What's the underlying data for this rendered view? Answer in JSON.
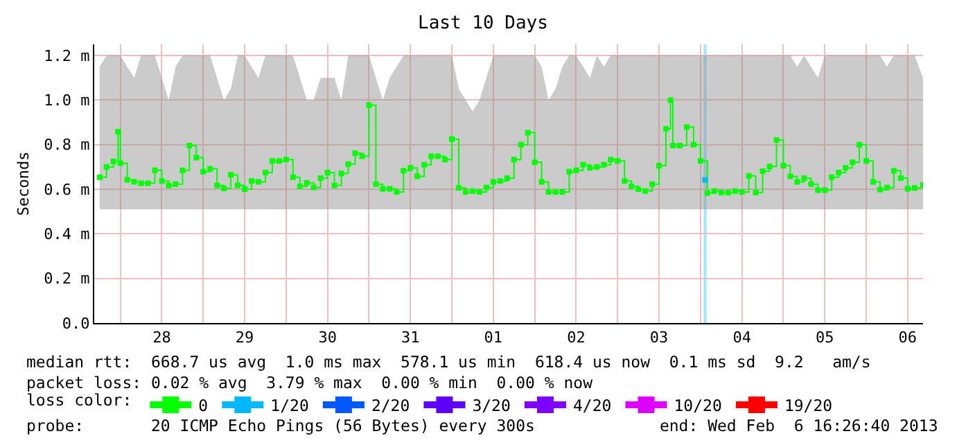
{
  "chart_data": {
    "type": "step",
    "title": "Last 10 Days",
    "ylabel": "Seconds",
    "legend_title": "loss color:",
    "x": [
      "2013-01-27T18:00",
      "2013-01-27T20:00",
      "2013-01-27T22:00",
      "2013-01-27T23:20",
      "2013-01-28T00:00",
      "2013-01-28T02:00",
      "2013-01-28T04:00",
      "2013-01-28T06:00",
      "2013-01-28T08:00",
      "2013-01-28T10:00",
      "2013-01-28T12:00",
      "2013-01-28T14:00",
      "2013-01-28T16:00",
      "2013-01-28T18:00",
      "2013-01-28T20:00",
      "2013-01-28T22:00",
      "2013-01-29T00:00",
      "2013-01-29T02:00",
      "2013-01-29T04:00",
      "2013-01-29T06:00",
      "2013-01-29T08:00",
      "2013-01-29T10:00",
      "2013-01-29T12:00",
      "2013-01-29T14:00",
      "2013-01-29T16:00",
      "2013-01-29T18:00",
      "2013-01-29T20:00",
      "2013-01-29T22:00",
      "2013-01-30T00:00",
      "2013-01-30T02:00",
      "2013-01-30T04:00",
      "2013-01-30T06:00",
      "2013-01-30T08:00",
      "2013-01-30T10:00",
      "2013-01-30T12:00",
      "2013-01-30T14:00",
      "2013-01-30T16:00",
      "2013-01-30T18:00",
      "2013-01-30T20:00",
      "2013-01-30T22:00",
      "2013-01-31T00:00",
      "2013-01-31T02:00",
      "2013-01-31T04:00",
      "2013-01-31T06:00",
      "2013-01-31T08:00",
      "2013-01-31T10:00",
      "2013-01-31T12:00",
      "2013-01-31T14:00",
      "2013-01-31T16:00",
      "2013-01-31T18:00",
      "2013-01-31T20:00",
      "2013-01-31T22:00",
      "2013-02-01T00:00",
      "2013-02-01T02:00",
      "2013-02-01T04:00",
      "2013-02-01T06:00",
      "2013-02-01T08:00",
      "2013-02-01T10:00",
      "2013-02-01T12:00",
      "2013-02-01T14:00",
      "2013-02-01T16:00",
      "2013-02-01T18:00",
      "2013-02-01T20:00",
      "2013-02-01T22:00",
      "2013-02-02T00:00",
      "2013-02-02T02:00",
      "2013-02-02T04:00",
      "2013-02-02T06:00",
      "2013-02-02T08:00",
      "2013-02-02T10:00",
      "2013-02-02T12:00",
      "2013-02-02T14:00",
      "2013-02-02T16:00",
      "2013-02-02T18:00",
      "2013-02-02T20:00",
      "2013-02-02T22:00",
      "2013-02-03T00:00",
      "2013-02-03T02:00",
      "2013-02-03T04:00",
      "2013-02-03T06:00",
      "2013-02-03T08:00",
      "2013-02-03T10:00",
      "2013-02-03T12:00",
      "2013-02-03T14:00",
      "2013-02-03T15:20",
      "2013-02-03T16:00",
      "2013-02-03T18:00",
      "2013-02-03T20:00",
      "2013-02-03T22:00",
      "2013-02-04T00:00",
      "2013-02-04T02:00",
      "2013-02-04T04:00",
      "2013-02-04T06:00",
      "2013-02-04T08:00",
      "2013-02-04T10:00",
      "2013-02-04T12:00",
      "2013-02-04T14:00",
      "2013-02-04T16:00",
      "2013-02-04T18:00",
      "2013-02-04T20:00",
      "2013-02-04T22:00",
      "2013-02-05T00:00",
      "2013-02-05T02:00",
      "2013-02-05T04:00",
      "2013-02-05T06:00",
      "2013-02-05T08:00",
      "2013-02-05T10:00",
      "2013-02-05T12:00",
      "2013-02-05T14:00",
      "2013-02-05T16:00",
      "2013-02-05T18:00",
      "2013-02-05T20:00",
      "2013-02-05T22:00",
      "2013-02-06T00:00",
      "2013-02-06T02:00",
      "2013-02-06T04:00",
      "2013-02-06T06:00",
      "2013-02-06T08:00",
      "2013-02-06T10:00",
      "2013-02-06T12:00",
      "2013-02-06T14:00",
      "2013-02-06T16:26"
    ],
    "series": [
      {
        "name": "0",
        "color": "#00ff00",
        "values": [
          0.654,
          0.7,
          0.725,
          0.858,
          0.717,
          0.642,
          0.633,
          0.627,
          0.627,
          0.685,
          0.637,
          0.617,
          0.623,
          0.685,
          0.796,
          0.742,
          0.679,
          0.692,
          0.617,
          0.604,
          0.665,
          0.617,
          0.6,
          0.637,
          0.633,
          0.675,
          0.727,
          0.727,
          0.733,
          0.654,
          0.613,
          0.629,
          0.608,
          0.65,
          0.675,
          0.617,
          0.671,
          0.713,
          0.762,
          0.748,
          0.977,
          0.623,
          0.602,
          0.602,
          0.588,
          0.683,
          0.696,
          0.658,
          0.71,
          0.748,
          0.748,
          0.733,
          0.825,
          0.606,
          0.588,
          0.592,
          0.588,
          0.608,
          0.633,
          0.637,
          0.65,
          0.733,
          0.8,
          0.854,
          0.721,
          0.633,
          0.588,
          0.588,
          0.588,
          0.679,
          0.685,
          0.71,
          0.696,
          0.7,
          0.71,
          0.733,
          0.727,
          0.637,
          0.613,
          0.6,
          0.592,
          0.623,
          0.706,
          0.871,
          1.0,
          0.796,
          0.796,
          0.879,
          0.8,
          0.727,
          0.583,
          0.592,
          0.585,
          0.585,
          0.592,
          0.588,
          0.66,
          0.585,
          0.681,
          0.702,
          0.821,
          0.706,
          0.658,
          0.633,
          0.65,
          0.623,
          0.596,
          0.596,
          0.654,
          0.675,
          0.696,
          0.721,
          0.8,
          0.727,
          0.633,
          0.598,
          0.608,
          0.683,
          0.65,
          0.602,
          0.606,
          0.619
        ],
        "lower": [
          0.51,
          0.51,
          0.51,
          0.51,
          0.51,
          0.51,
          0.51,
          0.51,
          0.51,
          0.51,
          0.51,
          0.51,
          0.51,
          0.51,
          0.51,
          0.51,
          0.51,
          0.51,
          0.51,
          0.51,
          0.51,
          0.51,
          0.51,
          0.51,
          0.51,
          0.51,
          0.51,
          0.51,
          0.51,
          0.51,
          0.51,
          0.51,
          0.51,
          0.51,
          0.51,
          0.51,
          0.51,
          0.51,
          0.51,
          0.51,
          0.51,
          0.51,
          0.51,
          0.51,
          0.51,
          0.51,
          0.51,
          0.51,
          0.51,
          0.51,
          0.51,
          0.51,
          0.51,
          0.51,
          0.51,
          0.51,
          0.51,
          0.51,
          0.51,
          0.51,
          0.51,
          0.51,
          0.51,
          0.51,
          0.51,
          0.51,
          0.51,
          0.51,
          0.51,
          0.51,
          0.51,
          0.51,
          0.51,
          0.51,
          0.51,
          0.51,
          0.51,
          0.51,
          0.51,
          0.51,
          0.51,
          0.51,
          0.51,
          0.51,
          0.51,
          0.51,
          0.51,
          0.51,
          0.51,
          0.51,
          0.51,
          0.51,
          0.51,
          0.51,
          0.51,
          0.51,
          0.51,
          0.51,
          0.51,
          0.51,
          0.51,
          0.51,
          0.51,
          0.51,
          0.51,
          0.51,
          0.51,
          0.51,
          0.51,
          0.51,
          0.51,
          0.51,
          0.51,
          0.51,
          0.51,
          0.51,
          0.51,
          0.51,
          0.51,
          0.51,
          0.51,
          0.51
        ],
        "upper": [
          1.15,
          1.2,
          1.2,
          1.2,
          1.2,
          1.15,
          1.1,
          1.2,
          1.2,
          1.2,
          1.1,
          1.0,
          1.15,
          1.2,
          1.2,
          1.2,
          1.2,
          1.2,
          1.1,
          1.0,
          1.05,
          1.2,
          1.2,
          1.15,
          1.1,
          1.2,
          1.2,
          1.2,
          1.2,
          1.2,
          1.1,
          1.0,
          1.0,
          1.1,
          1.1,
          1.1,
          1.0,
          1.2,
          1.2,
          1.2,
          1.2,
          1.1,
          1.0,
          1.1,
          1.15,
          1.2,
          1.2,
          1.2,
          1.2,
          1.2,
          1.2,
          1.2,
          1.2,
          1.05,
          1.0,
          0.95,
          1.0,
          1.1,
          1.2,
          1.2,
          1.2,
          1.2,
          1.2,
          1.2,
          1.2,
          1.15,
          1.0,
          1.05,
          1.15,
          1.2,
          1.2,
          1.15,
          1.1,
          1.2,
          1.15,
          1.2,
          1.2,
          1.2,
          1.2,
          1.2,
          1.2,
          1.2,
          1.2,
          1.2,
          1.2,
          1.2,
          1.2,
          1.2,
          1.2,
          1.2,
          1.2,
          1.2,
          1.2,
          1.2,
          1.2,
          1.2,
          1.2,
          1.2,
          1.2,
          1.2,
          1.2,
          1.2,
          1.2,
          1.15,
          1.2,
          1.15,
          1.1,
          1.2,
          1.2,
          1.2,
          1.2,
          1.2,
          1.2,
          1.2,
          1.2,
          1.2,
          1.15,
          1.2,
          1.2,
          1.2,
          1.2,
          1.1
        ]
      },
      {
        "name": "1/20",
        "color": "#00b8ff",
        "x": [
          "2013-02-04T01:20"
        ],
        "values": [
          0.642
        ]
      },
      {
        "name": "2/20",
        "color": "#0059ff",
        "values": [
          null,
          null,
          null,
          null,
          null,
          null,
          null,
          null,
          null,
          null,
          null,
          null,
          null,
          null,
          null,
          null,
          null,
          null,
          null,
          null,
          null,
          null,
          null,
          null,
          null,
          null,
          null,
          null,
          null,
          null,
          null,
          null,
          null,
          null,
          null,
          null,
          null,
          null,
          null,
          null,
          null,
          null,
          null,
          null,
          null,
          null,
          null,
          null,
          null,
          null,
          null,
          null,
          null,
          null,
          null,
          null,
          null,
          null,
          null,
          null,
          null,
          null,
          null,
          null,
          null,
          null,
          null,
          null,
          null,
          null,
          null,
          null,
          null,
          null,
          null,
          null,
          null,
          null,
          null,
          null,
          null,
          null,
          null,
          null,
          null,
          null,
          null,
          null,
          null,
          null,
          null,
          null,
          null,
          null,
          null,
          null,
          null,
          null,
          null,
          null,
          null,
          null,
          null,
          null,
          null,
          null,
          null,
          null,
          null,
          null,
          null,
          null,
          null,
          null,
          null,
          null,
          null,
          null,
          null,
          null,
          null,
          null
        ]
      },
      {
        "name": "3/20",
        "color": "#5e00ff",
        "values": [
          null,
          null,
          null,
          null,
          null,
          null,
          null,
          null,
          null,
          null,
          null,
          null,
          null,
          null,
          null,
          null,
          null,
          null,
          null,
          null,
          null,
          null,
          null,
          null,
          null,
          null,
          null,
          null,
          null,
          null,
          null,
          null,
          null,
          null,
          null,
          null,
          null,
          null,
          null,
          null,
          null,
          null,
          null,
          null,
          null,
          null,
          null,
          null,
          null,
          null,
          null,
          null,
          null,
          null,
          null,
          null,
          null,
          null,
          null,
          null,
          null,
          null,
          null,
          null,
          null,
          null,
          null,
          null,
          null,
          null,
          null,
          null,
          null,
          null,
          null,
          null,
          null,
          null,
          null,
          null,
          null,
          null,
          null,
          null,
          null,
          null,
          null,
          null,
          null,
          null,
          null,
          null,
          null,
          null,
          null,
          null,
          null,
          null,
          null,
          null,
          null,
          null,
          null,
          null,
          null,
          null,
          null,
          null,
          null,
          null,
          null,
          null,
          null,
          null,
          null,
          null,
          null,
          null,
          null,
          null,
          null,
          null
        ]
      },
      {
        "name": "4/20",
        "color": "#7e00ff",
        "values": [
          null,
          null,
          null,
          null,
          null,
          null,
          null,
          null,
          null,
          null,
          null,
          null,
          null,
          null,
          null,
          null,
          null,
          null,
          null,
          null,
          null,
          null,
          null,
          null,
          null,
          null,
          null,
          null,
          null,
          null,
          null,
          null,
          null,
          null,
          null,
          null,
          null,
          null,
          null,
          null,
          null,
          null,
          null,
          null,
          null,
          null,
          null,
          null,
          null,
          null,
          null,
          null,
          null,
          null,
          null,
          null,
          null,
          null,
          null,
          null,
          null,
          null,
          null,
          null,
          null,
          null,
          null,
          null,
          null,
          null,
          null,
          null,
          null,
          null,
          null,
          null,
          null,
          null,
          null,
          null,
          null,
          null,
          null,
          null,
          null,
          null,
          null,
          null,
          null,
          null,
          null,
          null,
          null,
          null,
          null,
          null,
          null,
          null,
          null,
          null,
          null,
          null,
          null,
          null,
          null,
          null,
          null,
          null,
          null,
          null,
          null,
          null,
          null,
          null,
          null,
          null,
          null,
          null,
          null,
          null,
          null,
          null
        ]
      },
      {
        "name": "10/20",
        "color": "#dd00ff",
        "values": [
          null,
          null,
          null,
          null,
          null,
          null,
          null,
          null,
          null,
          null,
          null,
          null,
          null,
          null,
          null,
          null,
          null,
          null,
          null,
          null,
          null,
          null,
          null,
          null,
          null,
          null,
          null,
          null,
          null,
          null,
          null,
          null,
          null,
          null,
          null,
          null,
          null,
          null,
          null,
          null,
          null,
          null,
          null,
          null,
          null,
          null,
          null,
          null,
          null,
          null,
          null,
          null,
          null,
          null,
          null,
          null,
          null,
          null,
          null,
          null,
          null,
          null,
          null,
          null,
          null,
          null,
          null,
          null,
          null,
          null,
          null,
          null,
          null,
          null,
          null,
          null,
          null,
          null,
          null,
          null,
          null,
          null,
          null,
          null,
          null,
          null,
          null,
          null,
          null,
          null,
          null,
          null,
          null,
          null,
          null,
          null,
          null,
          null,
          null,
          null,
          null,
          null,
          null,
          null,
          null,
          null,
          null,
          null,
          null,
          null,
          null,
          null,
          null,
          null,
          null,
          null,
          null,
          null,
          null,
          null,
          null,
          null
        ]
      },
      {
        "name": "19/20",
        "color": "#ff0000",
        "values": [
          null,
          null,
          null,
          null,
          null,
          null,
          null,
          null,
          null,
          null,
          null,
          null,
          null,
          null,
          null,
          null,
          null,
          null,
          null,
          null,
          null,
          null,
          null,
          null,
          null,
          null,
          null,
          null,
          null,
          null,
          null,
          null,
          null,
          null,
          null,
          null,
          null,
          null,
          null,
          null,
          null,
          null,
          null,
          null,
          null,
          null,
          null,
          null,
          null,
          null,
          null,
          null,
          null,
          null,
          null,
          null,
          null,
          null,
          null,
          null,
          null,
          null,
          null,
          null,
          null,
          null,
          null,
          null,
          null,
          null,
          null,
          null,
          null,
          null,
          null,
          null,
          null,
          null,
          null,
          null,
          null,
          null,
          null,
          null,
          null,
          null,
          null,
          null,
          null,
          null,
          null,
          null,
          null,
          null,
          null,
          null,
          null,
          null,
          null,
          null,
          null,
          null,
          null,
          null,
          null,
          null,
          null,
          null,
          null,
          null,
          null,
          null,
          null,
          null,
          null,
          null,
          null,
          null,
          null,
          null,
          null,
          null
        ]
      }
    ],
    "ref_lines": [
      {
        "axis": "x",
        "value": "2013-02-04T01:20",
        "color": "#a0e6ff"
      }
    ],
    "xlim": [
      "2013-01-27T16:26:40",
      "2013-02-06T16:26:40"
    ],
    "xticks": [
      {
        "value": "2013-01-28T00:00",
        "label": null
      },
      {
        "value": "2013-01-28T12:00",
        "label": "28"
      },
      {
        "value": "2013-01-29T00:00",
        "label": null
      },
      {
        "value": "2013-01-29T12:00",
        "label": "29"
      },
      {
        "value": "2013-01-30T00:00",
        "label": null
      },
      {
        "value": "2013-01-30T12:00",
        "label": "30"
      },
      {
        "value": "2013-01-31T00:00",
        "label": null
      },
      {
        "value": "2013-01-31T12:00",
        "label": "31"
      },
      {
        "value": "2013-02-01T00:00",
        "label": null
      },
      {
        "value": "2013-02-01T12:00",
        "label": "01"
      },
      {
        "value": "2013-02-02T00:00",
        "label": null
      },
      {
        "value": "2013-02-02T12:00",
        "label": "02"
      },
      {
        "value": "2013-02-03T00:00",
        "label": null
      },
      {
        "value": "2013-02-03T12:00",
        "label": "03"
      },
      {
        "value": "2013-02-04T00:00",
        "label": null
      },
      {
        "value": "2013-02-04T12:00",
        "label": "04"
      },
      {
        "value": "2013-02-05T00:00",
        "label": null
      },
      {
        "value": "2013-02-05T12:00",
        "label": "05"
      },
      {
        "value": "2013-02-06T00:00",
        "label": null
      },
      {
        "value": "2013-02-06T12:00",
        "label": "06"
      }
    ],
    "ylim": [
      0,
      1.25
    ],
    "yticks": [
      {
        "value": 0,
        "label": "0.0"
      },
      {
        "value": 0.2,
        "label": "0.2 m"
      },
      {
        "value": 0.4,
        "label": "0.4 m"
      },
      {
        "value": 0.6,
        "label": "0.6 m"
      },
      {
        "value": 0.8,
        "label": "0.8 m"
      },
      {
        "value": 1.0,
        "label": "1.0 m"
      },
      {
        "value": 1.2,
        "label": "1.2 m"
      }
    ],
    "grid": true,
    "legend": "bottom",
    "marker": "square",
    "annotations": [
      "median rtt:  668.7 us avg  1.0 ms max  578.1 us min  618.4 us now  0.1 ms sd  9.2   am/s",
      "packet loss: 0.02 % avg  3.79 % max  0.00 % min  0.00 % now",
      "probe:       20 ICMP Echo Pings (56 Bytes) every 300s             end: Wed Feb  6 16:26:40 2013"
    ]
  }
}
